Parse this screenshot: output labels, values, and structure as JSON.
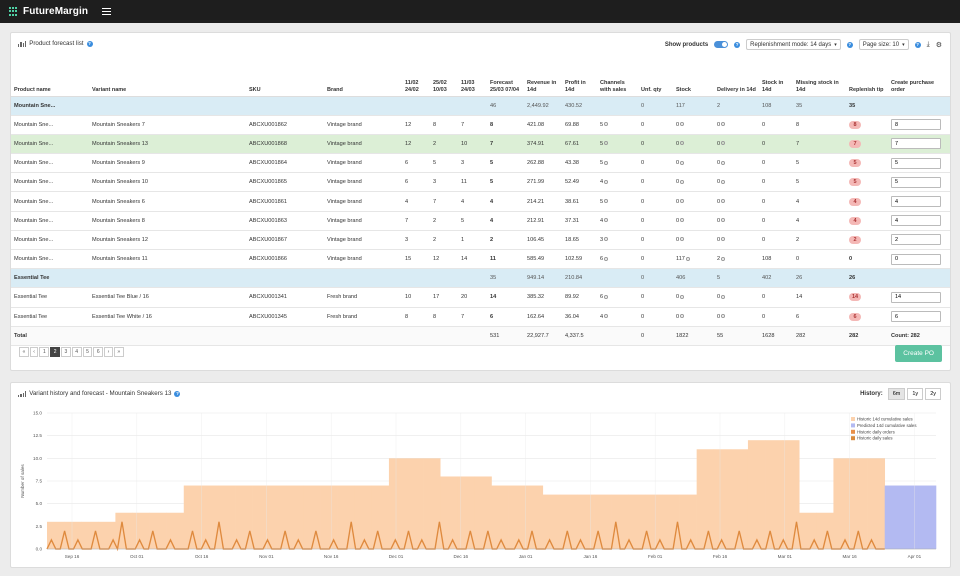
{
  "app": {
    "brand": "FutureMargin"
  },
  "forecast": {
    "title": "Product forecast list",
    "show_products_label": "Show products",
    "replenishment_mode": "Replenishment mode: 14 days",
    "page_size": "Page size: 10",
    "columns": [
      "Product name",
      "Variant name",
      "SKU",
      "Brand",
      "11/02 24/02",
      "25/02 10/03",
      "11/03 24/03",
      "Forecast 25/03 07/04",
      "Revenue in 14d",
      "Profit in 14d",
      "Channels with sales",
      "Unf. qty",
      "Stock",
      "Delivery in 14d",
      "Stock in 14d",
      "Missing stock in 14d",
      "Replenish tip",
      "Create purchase order"
    ],
    "rows": [
      {
        "type": "group",
        "product": "Mountain Sne...",
        "variant": "",
        "sku": "",
        "brand": "",
        "p1": "",
        "p2": "",
        "p3": "",
        "forecast": "46",
        "revenue": "2,449.92",
        "profit": "430.52",
        "channels": "",
        "unf": "0",
        "stock": "117",
        "delivery": "2",
        "stock14": "108",
        "missing": "35",
        "tip": "35",
        "po": ""
      },
      {
        "type": "row",
        "product": "Mountain Sne...",
        "variant": "Mountain Sneakers 7",
        "sku": "ABCXU001862",
        "brand": "Vintage brand",
        "p1": "12",
        "p2": "8",
        "p3": "7",
        "forecast": "8",
        "revenue": "421.08",
        "profit": "69.88",
        "channels": "5",
        "unf": "0",
        "stock": "0",
        "delivery": "0",
        "stock14": "0",
        "missing": "8",
        "tip": "8",
        "po": "8"
      },
      {
        "type": "selected",
        "product": "Mountain Sne...",
        "variant": "Mountain Sneakers 13",
        "sku": "ABCXU001868",
        "brand": "Vintage brand",
        "p1": "12",
        "p2": "2",
        "p3": "10",
        "forecast": "7",
        "revenue": "374.91",
        "profit": "67.61",
        "channels": "5",
        "unf": "0",
        "stock": "0",
        "delivery": "0",
        "stock14": "0",
        "missing": "7",
        "tip": "7",
        "po": "7"
      },
      {
        "type": "row",
        "product": "Mountain Sne...",
        "variant": "Mountain Sneakers 9",
        "sku": "ABCXU001864",
        "brand": "Vintage brand",
        "p1": "6",
        "p2": "5",
        "p3": "3",
        "forecast": "5",
        "revenue": "262.88",
        "profit": "43.38",
        "channels": "5",
        "unf": "0",
        "stock": "0",
        "delivery": "0",
        "stock14": "0",
        "missing": "5",
        "tip": "5",
        "po": "5"
      },
      {
        "type": "row",
        "product": "Mountain Sne...",
        "variant": "Mountain Sneakers 10",
        "sku": "ABCXU001865",
        "brand": "Vintage brand",
        "p1": "6",
        "p2": "3",
        "p3": "11",
        "forecast": "5",
        "revenue": "271.99",
        "profit": "52.49",
        "channels": "4",
        "unf": "0",
        "stock": "0",
        "delivery": "0",
        "stock14": "0",
        "missing": "5",
        "tip": "5",
        "po": "5"
      },
      {
        "type": "row",
        "product": "Mountain Sne...",
        "variant": "Mountain Sneakers 6",
        "sku": "ABCXU001861",
        "brand": "Vintage brand",
        "p1": "4",
        "p2": "7",
        "p3": "4",
        "forecast": "4",
        "revenue": "214.21",
        "profit": "38.61",
        "channels": "5",
        "unf": "0",
        "stock": "0",
        "delivery": "0",
        "stock14": "0",
        "missing": "4",
        "tip": "4",
        "po": "4"
      },
      {
        "type": "row",
        "product": "Mountain Sne...",
        "variant": "Mountain Sneakers 8",
        "sku": "ABCXU001863",
        "brand": "Vintage brand",
        "p1": "7",
        "p2": "2",
        "p3": "5",
        "forecast": "4",
        "revenue": "212.91",
        "profit": "37.31",
        "channels": "4",
        "unf": "0",
        "stock": "0",
        "delivery": "0",
        "stock14": "0",
        "missing": "4",
        "tip": "4",
        "po": "4"
      },
      {
        "type": "row",
        "product": "Mountain Sne...",
        "variant": "Mountain Sneakers 12",
        "sku": "ABCXU001867",
        "brand": "Vintage brand",
        "p1": "3",
        "p2": "2",
        "p3": "1",
        "forecast": "2",
        "revenue": "106.45",
        "profit": "18.65",
        "channels": "3",
        "unf": "0",
        "stock": "0",
        "delivery": "0",
        "stock14": "0",
        "missing": "2",
        "tip": "2",
        "po": "2"
      },
      {
        "type": "row",
        "product": "Mountain Sne...",
        "variant": "Mountain Sneakers 11",
        "sku": "ABCXU001866",
        "brand": "Vintage brand",
        "p1": "15",
        "p2": "12",
        "p3": "14",
        "forecast": "11",
        "revenue": "585.49",
        "profit": "102.59",
        "channels": "6",
        "unf": "0",
        "stock": "117",
        "delivery": "2",
        "stock14": "108",
        "missing": "0",
        "tip": "0",
        "po": "0"
      },
      {
        "type": "group",
        "product": "Essential Tee",
        "variant": "",
        "sku": "",
        "brand": "",
        "p1": "",
        "p2": "",
        "p3": "",
        "forecast": "35",
        "revenue": "949.14",
        "profit": "210.84",
        "channels": "",
        "unf": "0",
        "stock": "406",
        "delivery": "5",
        "stock14": "402",
        "missing": "26",
        "tip": "26",
        "po": ""
      },
      {
        "type": "row",
        "product": "Essential Tee",
        "variant": "Essential Tee Blue / 16",
        "sku": "ABCXU001341",
        "brand": "Fresh brand",
        "p1": "10",
        "p2": "17",
        "p3": "20",
        "forecast": "14",
        "revenue": "385.32",
        "profit": "89.92",
        "channels": "6",
        "unf": "0",
        "stock": "0",
        "delivery": "0",
        "stock14": "0",
        "missing": "14",
        "tip": "14",
        "po": "14"
      },
      {
        "type": "row",
        "product": "Essential Tee",
        "variant": "Essential Tee White / 16",
        "sku": "ABCXU001345",
        "brand": "Fresh brand",
        "p1": "8",
        "p2": "8",
        "p3": "7",
        "forecast": "6",
        "revenue": "162.64",
        "profit": "36.04",
        "channels": "4",
        "unf": "0",
        "stock": "0",
        "delivery": "0",
        "stock14": "0",
        "missing": "6",
        "tip": "6",
        "po": "6"
      }
    ],
    "total": {
      "label": "Total",
      "forecast": "531",
      "revenue": "22,927.7",
      "profit": "4,337.5",
      "unf": "0",
      "stock": "1822",
      "delivery": "55",
      "stock14": "1628",
      "missing": "282",
      "tip": "282",
      "count": "Count: 282"
    },
    "pager": [
      "«",
      "‹",
      "1",
      "2",
      "3",
      "4",
      "5",
      "6",
      "›",
      "»"
    ],
    "pager_active": "2",
    "create_po_label": "Create PO"
  },
  "history": {
    "title": "Variant history and forecast - Mountain Sneakers 13",
    "history_label": "History:",
    "ranges": [
      "6m",
      "1y",
      "2y"
    ],
    "active_range": "6m"
  },
  "chart_data": {
    "type": "area",
    "ylabel": "Number of sales",
    "ylim": [
      0,
      15
    ],
    "yticks": [
      "0.0",
      "2.5",
      "5.0",
      "7.5",
      "10.0",
      "12.5",
      "15.0"
    ],
    "xticks": [
      "Sep 16",
      "Oct 01",
      "Oct 16",
      "Nov 01",
      "Nov 16",
      "Dec 01",
      "Dec 16",
      "Jan 01",
      "Jan 16",
      "Feb 01",
      "Feb 16",
      "Mar 01",
      "Mar 16",
      "Apr 01"
    ],
    "legend": [
      "Historic 14d cumulative sales",
      "Predicted 14d cumulative sales",
      "Historic daily orders",
      "Historic daily sales"
    ],
    "colors": {
      "historic_cum": "#fcd2ad",
      "predicted_cum": "#b3baf2",
      "orders": "#e8904a",
      "sales": "#d98a3c"
    },
    "historic_14d_cumulative": [
      3,
      3,
      3,
      3,
      4,
      4,
      4,
      4,
      7,
      7,
      7,
      7,
      7,
      7,
      7,
      7,
      7,
      7,
      7,
      7,
      10,
      10,
      10,
      8,
      8,
      8,
      7,
      7,
      7,
      6,
      6,
      6,
      6,
      6,
      6,
      6,
      6,
      6,
      11,
      11,
      11,
      12,
      12,
      12,
      4,
      4,
      10,
      10,
      10
    ],
    "predicted_14d_cumulative": [
      7,
      7,
      7
    ],
    "daily_sales": [
      0,
      1,
      0,
      0,
      2,
      0,
      0,
      1,
      0,
      0,
      0,
      2,
      0,
      0,
      0,
      1,
      0,
      3,
      0,
      0,
      0,
      1,
      0,
      0,
      2,
      0,
      0,
      0,
      1,
      0,
      0,
      0,
      0,
      2,
      0,
      0,
      1,
      0,
      0,
      3,
      0,
      0,
      0,
      1,
      0,
      0,
      2,
      0,
      0,
      0,
      1,
      0,
      0,
      0,
      2,
      0,
      0,
      1,
      0,
      0,
      0,
      2,
      0,
      0,
      0,
      1,
      0,
      0,
      0,
      3,
      0,
      0,
      1,
      0,
      0,
      2,
      0,
      0,
      0,
      1,
      0,
      0,
      2,
      0,
      0,
      1,
      0,
      0,
      0,
      3,
      0,
      0,
      1,
      0,
      0,
      0,
      2,
      0,
      0,
      0,
      2,
      0,
      0,
      1,
      0,
      0,
      0,
      1,
      0,
      0,
      2,
      0,
      0,
      0,
      1,
      0,
      0,
      0,
      2,
      0,
      0,
      1,
      0,
      0,
      0,
      2,
      0,
      0,
      0,
      3,
      0,
      0,
      1,
      0,
      0,
      0,
      2,
      0,
      0,
      1,
      0,
      0,
      0,
      3,
      0,
      0,
      1,
      0,
      0,
      0,
      2,
      0,
      0,
      1,
      0,
      0,
      0,
      2,
      0,
      0,
      0,
      1,
      0,
      0,
      2,
      0,
      0,
      1,
      0,
      0,
      3,
      0,
      0,
      0,
      1,
      0,
      0,
      2,
      0,
      0,
      0,
      1,
      0,
      0,
      2,
      0,
      0,
      1,
      0,
      0,
      0
    ]
  }
}
